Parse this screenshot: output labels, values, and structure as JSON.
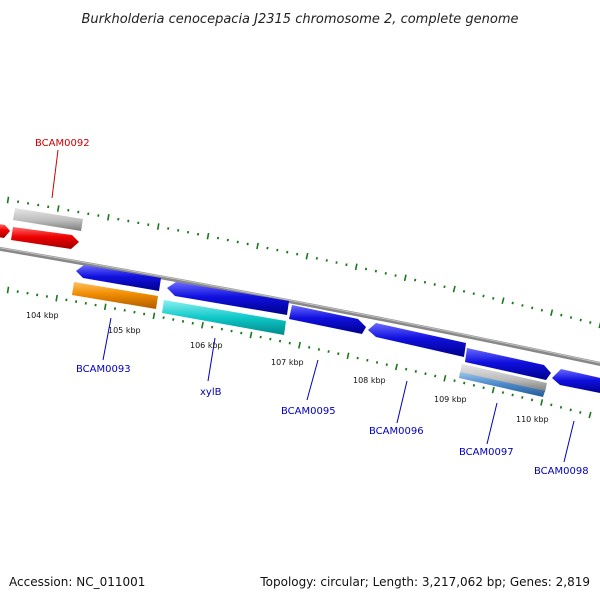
{
  "title": "Burkholderia cenocepacia J2315 chromosome 2, complete genome",
  "footer": {
    "accession": "Accession: NC_011001",
    "stats": "Topology: circular; Length: 3,217,062 bp; Genes: 2,819"
  },
  "colors": {
    "backbone": "#8c8c8c",
    "tick": "#1a7a1a",
    "label_red": "#cc0000",
    "label_blue": "#0000bb",
    "red": "#ee0000",
    "grey": "#bcbcbc",
    "blue": "#1010e0",
    "orange": "#f08c00",
    "cyan": "#10c8c8",
    "steel": "#4a88c8"
  },
  "scale": [
    "104 kbp",
    "105 kbp",
    "106 kbp",
    "107 kbp",
    "108 kbp",
    "109 kbp",
    "110 kbp"
  ],
  "genes": {
    "bcam0092": "BCAM0092",
    "bcam0093": "BCAM0093",
    "xylb": "xylB",
    "bcam0095": "BCAM0095",
    "bcam0096": "BCAM0096",
    "bcam0097": "BCAM0097",
    "bcam0098": "BCAM0098"
  }
}
